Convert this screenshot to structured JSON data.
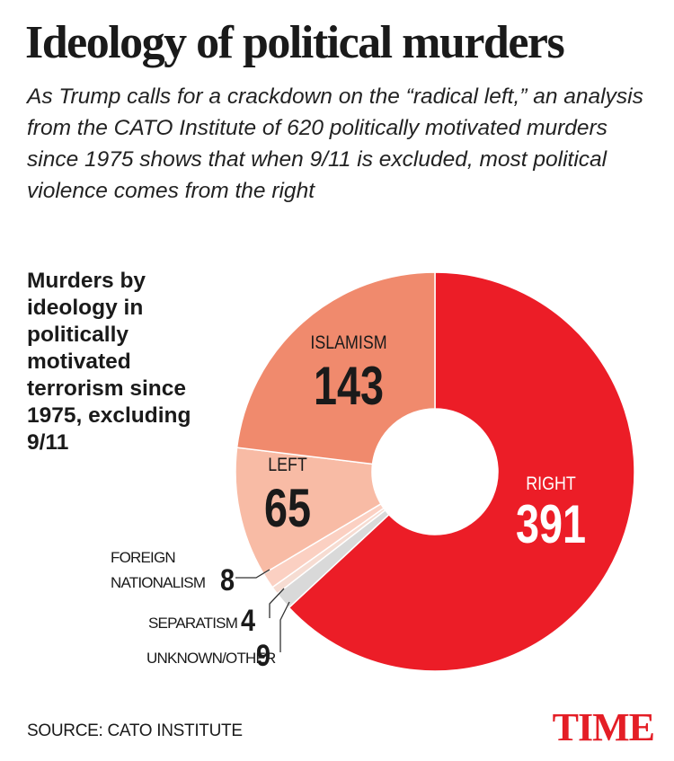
{
  "chart_data": {
    "type": "donut",
    "title": "Ideology of political murders",
    "subtitle": "As Trump calls for a crackdown on the “radical left,” an analysis from the CATO Institute of 620 politically motivated murders since 1975 shows that when 9/11 is excluded, most political violence comes from the right",
    "annotation": "Murders by ideology in politically motivated terrorism since 1975, excluding 9/11",
    "categories": [
      "RIGHT",
      "UNKNOWN/OTHER",
      "SEPARATISM",
      "FOREIGN NATIONALISM",
      "LEFT",
      "ISLAMISM"
    ],
    "values": [
      391,
      9,
      4,
      8,
      65,
      143
    ],
    "colors": [
      "#ec1d27",
      "#d9d9d9",
      "#f6dcd2",
      "#fbd0c2",
      "#f8bba5",
      "#f08a6d"
    ],
    "source": "SOURCE: CATO INSTITUTE",
    "logo": "TIME"
  }
}
